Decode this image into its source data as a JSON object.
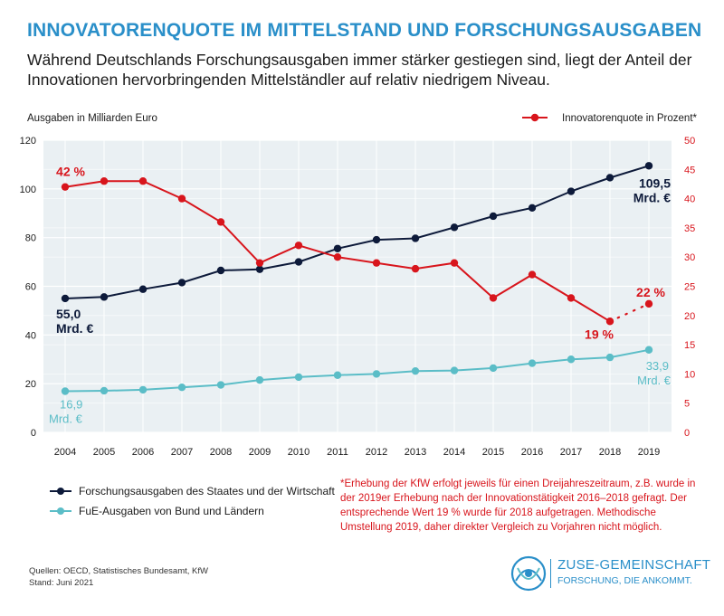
{
  "header": {
    "title": "INNOVATORENQUOTE IM MITTELSTAND UND FORSCHUNGSAUSGABEN",
    "subtitle": "Während Deutschlands Forschungsausgaben immer stärker gestiegen sind, liegt der Anteil der Innovationen hervorbringenden Mittelständler auf relativ niedrigem Niveau."
  },
  "chart_data": {
    "type": "line",
    "categories": [
      "2004",
      "2005",
      "2006",
      "2007",
      "2008",
      "2009",
      "2010",
      "2011",
      "2012",
      "2013",
      "2014",
      "2015",
      "2016",
      "2017",
      "2018",
      "2019"
    ],
    "left_axis_label": "Ausgaben in Milliarden Euro",
    "right_axis_label": "Innovatorenquote in Prozent*",
    "left_ylim": [
      0,
      120
    ],
    "left_ticks": [
      "0",
      "20",
      "40",
      "60",
      "80",
      "100",
      "120"
    ],
    "right_ylim": [
      0,
      50
    ],
    "right_ticks": [
      "0",
      "5",
      "10",
      "15",
      "20",
      "25",
      "30",
      "35",
      "40",
      "45",
      "50"
    ],
    "grid": true,
    "series": [
      {
        "name": "Forschungsausgaben des Staates und der Wirtschaft",
        "axis": "left",
        "color": "#0d1a3a",
        "values": [
          55.0,
          55.6,
          58.8,
          61.5,
          66.5,
          67.0,
          70.0,
          75.5,
          79.1,
          79.7,
          84.2,
          88.8,
          92.2,
          99.0,
          104.6,
          109.5
        ]
      },
      {
        "name": "FuE-Ausgaben von Bund und Ländern",
        "axis": "left",
        "color": "#5bbdc7",
        "values": [
          16.9,
          17.1,
          17.5,
          18.5,
          19.5,
          21.5,
          22.7,
          23.5,
          24.0,
          25.2,
          25.4,
          26.4,
          28.4,
          30.0,
          30.8,
          33.9
        ]
      },
      {
        "name": "Innovatorenquote in Prozent*",
        "axis": "right",
        "color": "#d8151c",
        "values": [
          42,
          43,
          43,
          40,
          36,
          29,
          32,
          30,
          29,
          28,
          29,
          23,
          27,
          23,
          19,
          22
        ],
        "dotted_last_segment": true
      }
    ],
    "annotations": {
      "innov_first": "42 %",
      "innov_2018": "19 %",
      "innov_last": "22 %",
      "forsch_first": [
        "55,0",
        "Mrd. €"
      ],
      "forsch_last": [
        "109,5",
        "Mrd. €"
      ],
      "fue_first": [
        "16,9",
        "Mrd. €"
      ],
      "fue_last": [
        "33,9",
        "Mrd. €"
      ]
    }
  },
  "legend": {
    "forsch": "Forschungsausgaben des Staates und der Wirtschaft",
    "fue": "FuE-Ausgaben von Bund und Ländern"
  },
  "footnote": "*Erhebung der KfW erfolgt jeweils für einen Dreijahreszeitraum, z.B. wurde in der 2019er Erhebung nach der Innovationstätigkeit 2016–2018 gefragt. Der entsprechende Wert 19 % wurde für 2018 aufgetragen. Methodische Umstellung 2019, daher direkter Vergleich zu Vorjahren nicht möglich.",
  "sources": {
    "line1": "Quellen: OECD, Statistisches Bundesamt, KfW",
    "line2": "Stand: Juni 2021"
  },
  "logo": {
    "name": "ZUSE-GEMEINSCHAFT",
    "tagline": "FORSCHUNG, DIE ANKOMMT."
  },
  "colors": {
    "title": "#2a8fc9",
    "plot_bg": "#eaf0f3",
    "forsch": "#0d1a3a",
    "fue": "#5bbdc7",
    "innov": "#d8151c"
  }
}
